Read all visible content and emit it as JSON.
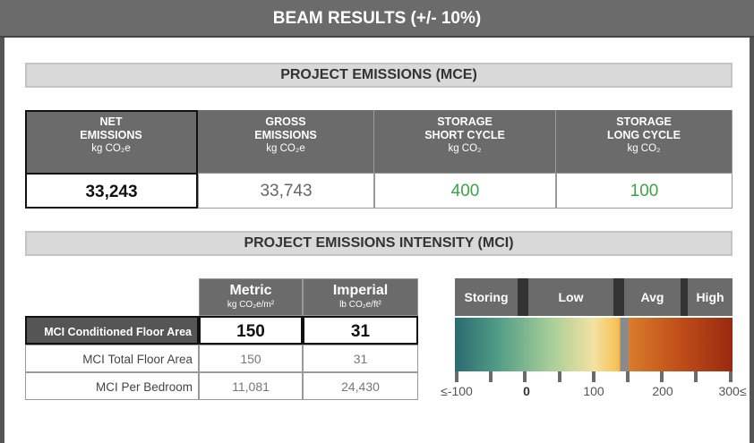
{
  "header": {
    "title": "BEAM RESULTS (+/- 10%)"
  },
  "mce": {
    "title": "PROJECT EMISSIONS (MCE)",
    "columns": [
      {
        "heading": [
          "NET",
          "EMISSIONS"
        ],
        "unit": "kg CO₂e",
        "value": "33,243"
      },
      {
        "heading": [
          "GROSS",
          "EMISSIONS"
        ],
        "unit": "kg CO₂e",
        "value": "33,743"
      },
      {
        "heading": [
          "STORAGE",
          "SHORT CYCLE"
        ],
        "unit": "kg CO₂",
        "value": "400"
      },
      {
        "heading": [
          "STORAGE",
          "LONG CYCLE"
        ],
        "unit": "kg CO₂",
        "value": "100"
      }
    ]
  },
  "mci": {
    "title": "PROJECT EMISSIONS INTENSITY (MCI)",
    "columns": [
      {
        "name": "Metric",
        "unit": "kg CO₂e/m²"
      },
      {
        "name": "Imperial",
        "unit": "lb CO₂e/ft²"
      }
    ],
    "rows": [
      {
        "label": "MCI Conditioned Floor Area",
        "metric": "150",
        "imperial": "31"
      },
      {
        "label": "MCI Total Floor Area",
        "metric": "150",
        "imperial": "31"
      },
      {
        "label": "MCI Per Bedroom",
        "metric": "11,081",
        "imperial": "24,430"
      }
    ]
  },
  "scale": {
    "bands": [
      "Storing",
      "Low",
      "Avg",
      "High"
    ],
    "ticks": [
      "≤-100",
      "0",
      "100",
      "200",
      "300≤"
    ]
  }
}
